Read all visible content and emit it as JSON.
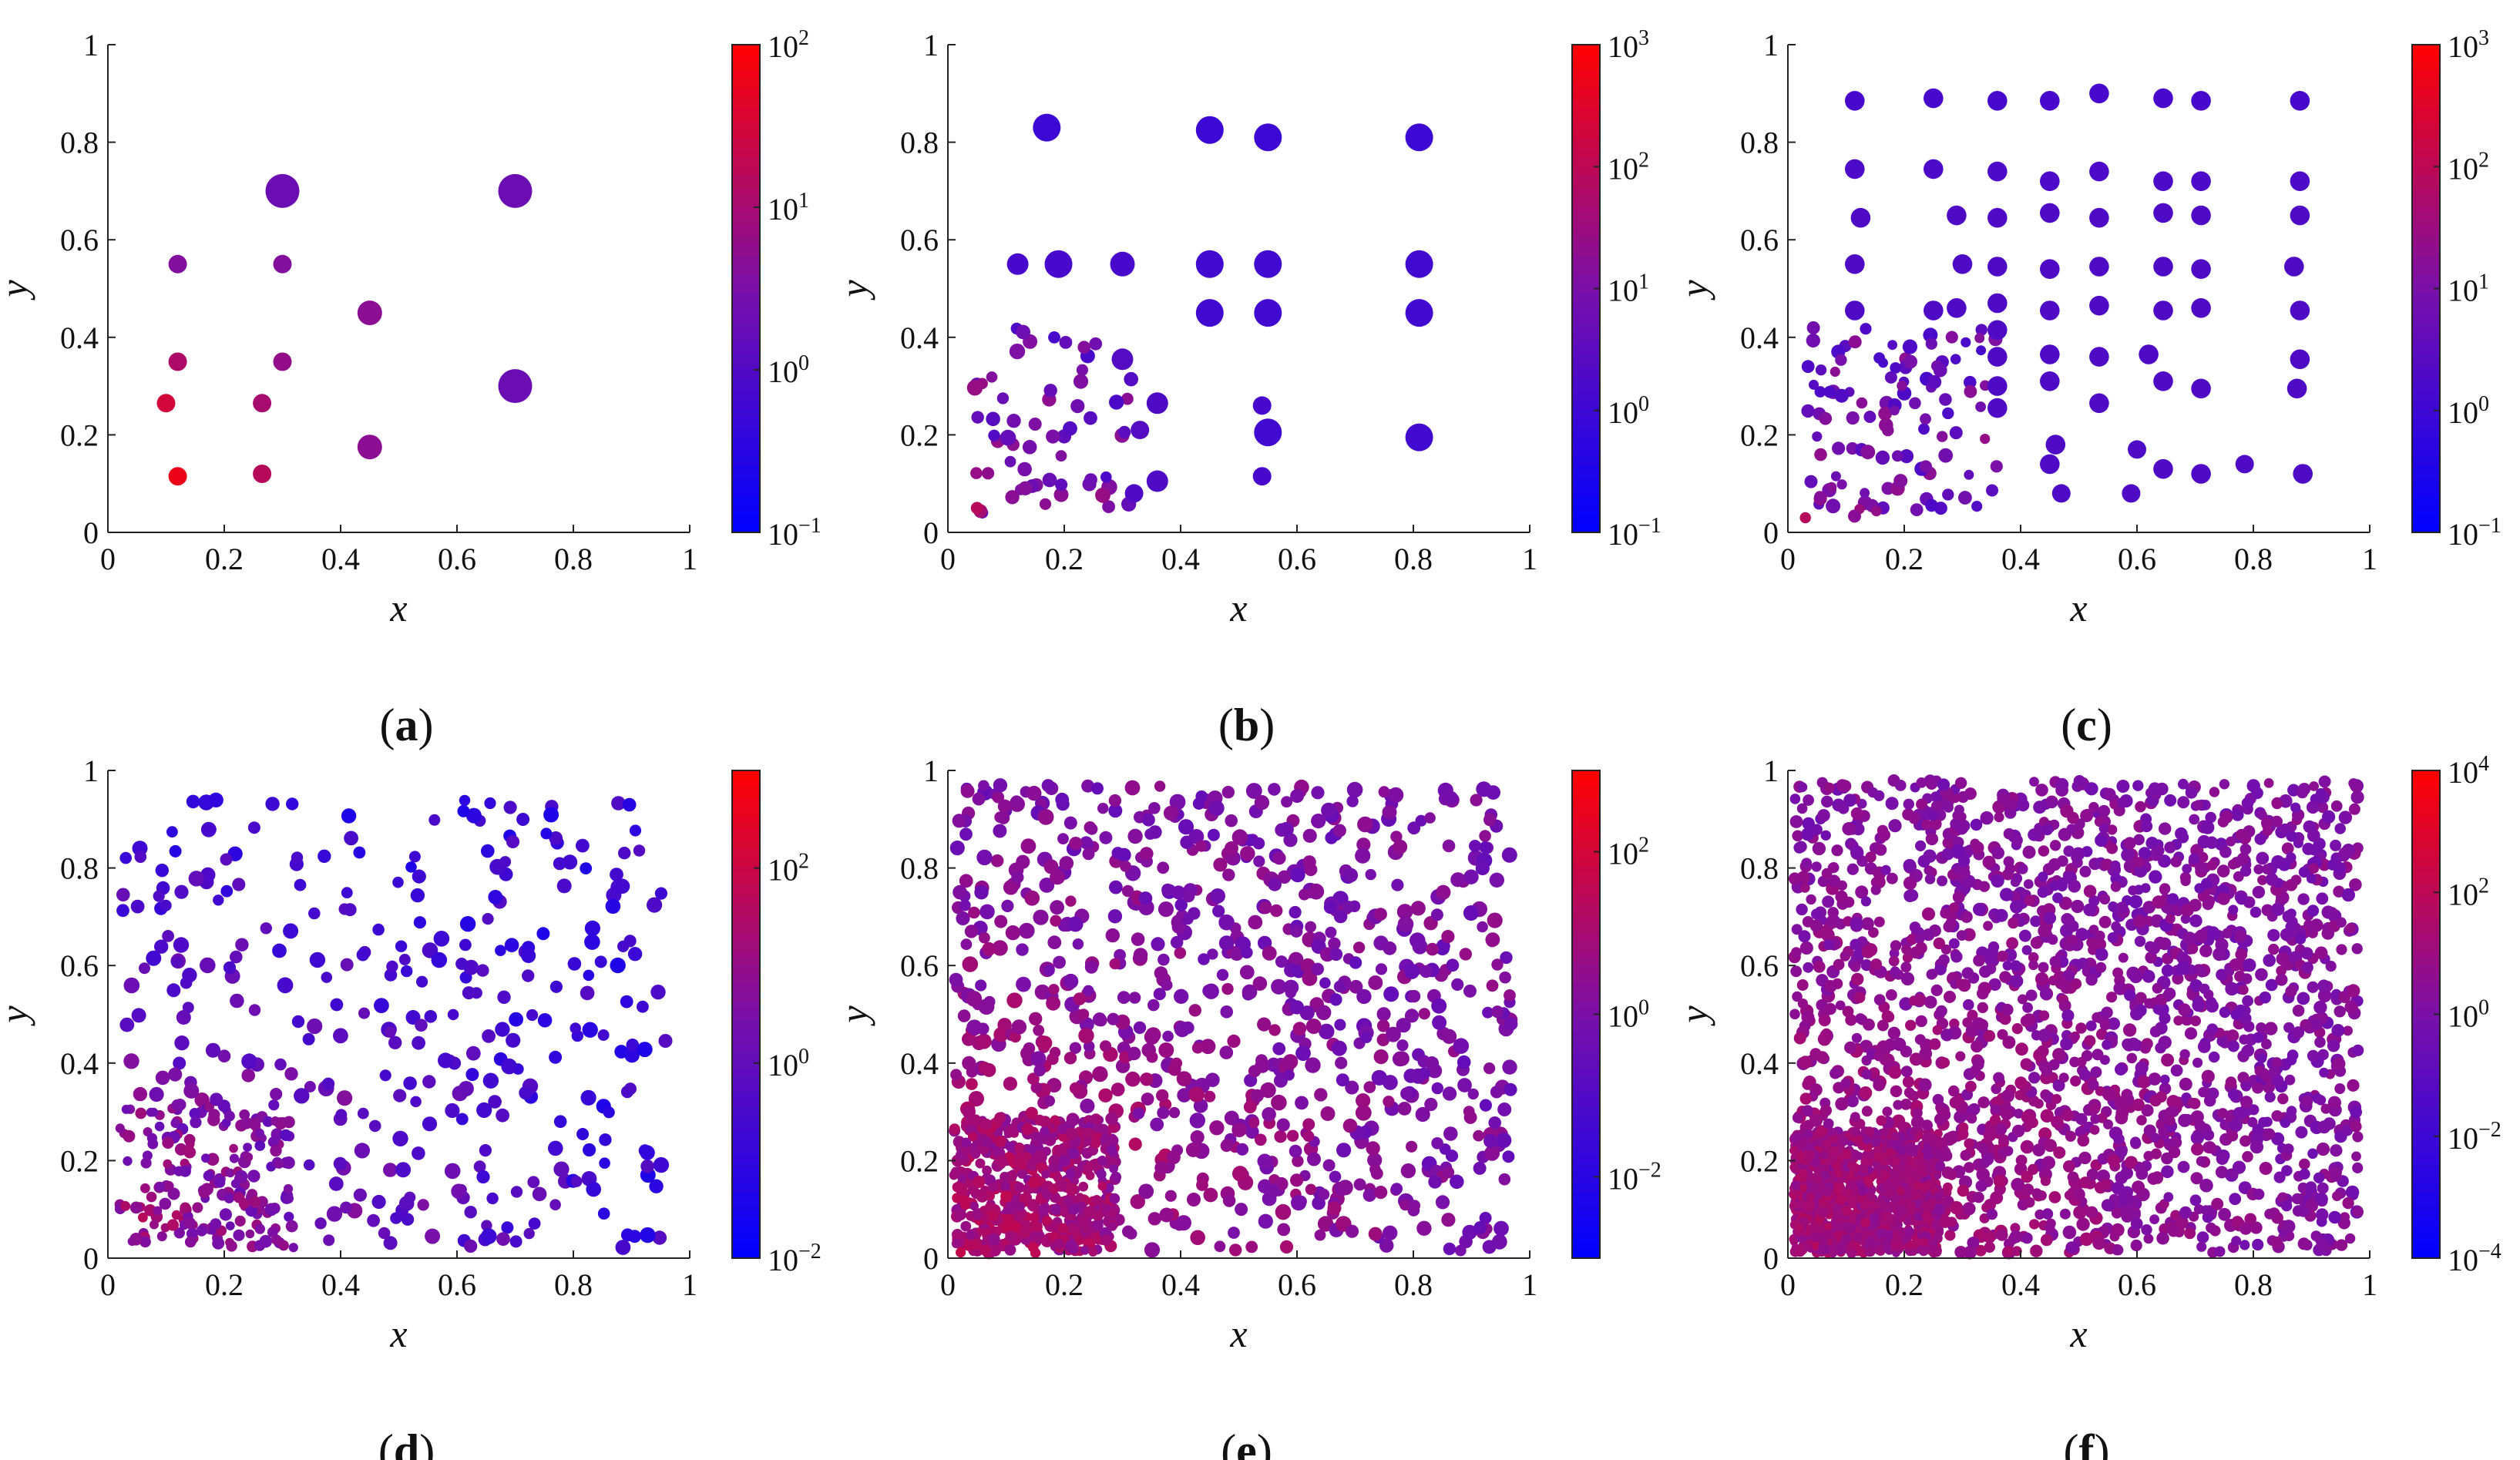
{
  "figure": {
    "panel_labels": [
      "a",
      "b",
      "c",
      "d",
      "e",
      "f"
    ],
    "colors": {
      "low": "#0000ff",
      "mid": "#7a10a8",
      "high": "#ff0000"
    }
  },
  "chart_data": [
    {
      "id": "a",
      "type": "scatter",
      "xlabel": "x",
      "ylabel": "y",
      "xlim": [
        0,
        1
      ],
      "ylim": [
        0,
        1
      ],
      "x_ticks": [
        "0",
        "0.2",
        "0.4",
        "0.6",
        "0.8",
        "1"
      ],
      "y_ticks": [
        "0",
        "0.2",
        "0.4",
        "0.6",
        "0.8",
        "1"
      ],
      "colorbar": {
        "log_min": -1,
        "log_max": 2,
        "tick_exponents": [
          -1,
          0,
          1,
          2
        ]
      },
      "points": [
        [
          0.3,
          0.7,
          0.55,
          2
        ],
        [
          0.7,
          0.7,
          0.55,
          2
        ],
        [
          0.7,
          0.3,
          0.55,
          2
        ],
        [
          0.12,
          0.55,
          0.3,
          4
        ],
        [
          0.3,
          0.55,
          0.3,
          4
        ],
        [
          0.12,
          0.35,
          0.3,
          12
        ],
        [
          0.3,
          0.35,
          0.3,
          6
        ],
        [
          0.45,
          0.45,
          0.4,
          5
        ],
        [
          0.45,
          0.175,
          0.4,
          5
        ],
        [
          0.1,
          0.265,
          0.3,
          30
        ],
        [
          0.265,
          0.265,
          0.3,
          10
        ],
        [
          0.265,
          0.12,
          0.3,
          15
        ],
        [
          0.12,
          0.115,
          0.3,
          60
        ]
      ],
      "fill": null
    },
    {
      "id": "b",
      "type": "scatter",
      "xlabel": "x",
      "ylabel": "y",
      "xlim": [
        0,
        1
      ],
      "ylim": [
        0,
        1
      ],
      "x_ticks": [
        "0",
        "0.2",
        "0.4",
        "0.6",
        "0.8",
        "1"
      ],
      "y_ticks": [
        "0",
        "0.2",
        "0.4",
        "0.6",
        "0.8",
        "1"
      ],
      "colorbar": {
        "log_min": -1,
        "log_max": 3,
        "tick_exponents": [
          -1,
          0,
          1,
          2,
          3
        ]
      },
      "points": [
        [
          0.17,
          0.83,
          0.45,
          1
        ],
        [
          0.45,
          0.825,
          0.45,
          1
        ],
        [
          0.55,
          0.81,
          0.45,
          1
        ],
        [
          0.81,
          0.81,
          0.45,
          1
        ],
        [
          0.12,
          0.55,
          0.35,
          1.5
        ],
        [
          0.19,
          0.55,
          0.45,
          1.5
        ],
        [
          0.3,
          0.55,
          0.4,
          1.5
        ],
        [
          0.45,
          0.55,
          0.45,
          1.2
        ],
        [
          0.55,
          0.55,
          0.45,
          1.2
        ],
        [
          0.81,
          0.55,
          0.45,
          1.2
        ],
        [
          0.45,
          0.45,
          0.45,
          1.2
        ],
        [
          0.55,
          0.45,
          0.45,
          1.2
        ],
        [
          0.81,
          0.45,
          0.45,
          1.2
        ],
        [
          0.55,
          0.205,
          0.45,
          1.2
        ],
        [
          0.81,
          0.195,
          0.45,
          1.2
        ],
        [
          0.54,
          0.26,
          0.3,
          1.5
        ],
        [
          0.54,
          0.115,
          0.3,
          1.5
        ],
        [
          0.36,
          0.265,
          0.35,
          2
        ],
        [
          0.36,
          0.105,
          0.35,
          2
        ],
        [
          0.3,
          0.355,
          0.35,
          2.5
        ],
        [
          0.32,
          0.08,
          0.3,
          2
        ],
        [
          0.33,
          0.21,
          0.3,
          2.5
        ],
        [
          0.05,
          0.05,
          0.2,
          80
        ]
      ],
      "fill": {
        "x0": 0.04,
        "x1": 0.32,
        "y0": 0.04,
        "y1": 0.42,
        "n": 60,
        "rmin": 0.18,
        "rmax": 0.26,
        "logv0": 1.1,
        "logv1": 0.3,
        "seed": 11
      }
    },
    {
      "id": "c",
      "type": "scatter",
      "xlabel": "x",
      "ylabel": "y",
      "xlim": [
        0,
        1
      ],
      "ylim": [
        0,
        1
      ],
      "x_ticks": [
        "0",
        "0.2",
        "0.4",
        "0.6",
        "0.8",
        "1"
      ],
      "y_ticks": [
        "0",
        "0.2",
        "0.4",
        "0.6",
        "0.8",
        "1"
      ],
      "colorbar": {
        "log_min": -1,
        "log_max": 3,
        "tick_exponents": [
          -1,
          0,
          1,
          2,
          3
        ]
      },
      "points": [
        [
          0.115,
          0.885,
          0.32,
          1.5
        ],
        [
          0.25,
          0.89,
          0.32,
          1.5
        ],
        [
          0.36,
          0.885,
          0.32,
          1.5
        ],
        [
          0.45,
          0.885,
          0.32,
          1.5
        ],
        [
          0.535,
          0.9,
          0.32,
          1.5
        ],
        [
          0.645,
          0.89,
          0.32,
          1.5
        ],
        [
          0.71,
          0.885,
          0.32,
          1.5
        ],
        [
          0.88,
          0.885,
          0.32,
          1.5
        ],
        [
          0.115,
          0.745,
          0.32,
          1.8
        ],
        [
          0.25,
          0.745,
          0.32,
          1.8
        ],
        [
          0.36,
          0.74,
          0.32,
          1.8
        ],
        [
          0.45,
          0.72,
          0.32,
          1.8
        ],
        [
          0.535,
          0.74,
          0.32,
          1.8
        ],
        [
          0.645,
          0.72,
          0.32,
          1.8
        ],
        [
          0.71,
          0.72,
          0.32,
          1.8
        ],
        [
          0.88,
          0.72,
          0.32,
          1.8
        ],
        [
          0.125,
          0.645,
          0.32,
          2
        ],
        [
          0.29,
          0.65,
          0.32,
          2
        ],
        [
          0.36,
          0.645,
          0.32,
          2
        ],
        [
          0.45,
          0.655,
          0.32,
          2
        ],
        [
          0.535,
          0.645,
          0.32,
          2
        ],
        [
          0.645,
          0.655,
          0.32,
          2
        ],
        [
          0.71,
          0.65,
          0.32,
          2
        ],
        [
          0.88,
          0.65,
          0.32,
          2
        ],
        [
          0.115,
          0.55,
          0.32,
          2
        ],
        [
          0.3,
          0.55,
          0.32,
          2
        ],
        [
          0.36,
          0.545,
          0.32,
          2
        ],
        [
          0.45,
          0.54,
          0.32,
          2
        ],
        [
          0.535,
          0.545,
          0.32,
          2
        ],
        [
          0.645,
          0.545,
          0.32,
          2
        ],
        [
          0.71,
          0.54,
          0.32,
          2
        ],
        [
          0.87,
          0.545,
          0.32,
          2
        ],
        [
          0.115,
          0.455,
          0.32,
          2
        ],
        [
          0.25,
          0.455,
          0.32,
          2
        ],
        [
          0.29,
          0.46,
          0.32,
          2
        ],
        [
          0.36,
          0.47,
          0.32,
          2
        ],
        [
          0.45,
          0.455,
          0.32,
          2
        ],
        [
          0.535,
          0.465,
          0.32,
          2
        ],
        [
          0.645,
          0.455,
          0.32,
          2
        ],
        [
          0.71,
          0.46,
          0.32,
          2
        ],
        [
          0.88,
          0.455,
          0.32,
          2
        ],
        [
          0.36,
          0.415,
          0.32,
          2
        ],
        [
          0.36,
          0.36,
          0.32,
          2
        ],
        [
          0.45,
          0.365,
          0.32,
          2
        ],
        [
          0.535,
          0.36,
          0.32,
          2
        ],
        [
          0.62,
          0.365,
          0.32,
          2
        ],
        [
          0.88,
          0.355,
          0.32,
          2
        ],
        [
          0.36,
          0.3,
          0.32,
          2
        ],
        [
          0.45,
          0.31,
          0.32,
          2
        ],
        [
          0.645,
          0.31,
          0.32,
          2
        ],
        [
          0.71,
          0.295,
          0.32,
          2
        ],
        [
          0.875,
          0.295,
          0.32,
          2
        ],
        [
          0.535,
          0.265,
          0.32,
          2
        ],
        [
          0.36,
          0.255,
          0.32,
          2
        ],
        [
          0.46,
          0.18,
          0.32,
          2
        ],
        [
          0.45,
          0.14,
          0.32,
          2
        ],
        [
          0.645,
          0.13,
          0.32,
          2
        ],
        [
          0.71,
          0.12,
          0.32,
          2
        ],
        [
          0.885,
          0.12,
          0.32,
          2
        ],
        [
          0.59,
          0.08,
          0.3,
          2
        ],
        [
          0.47,
          0.08,
          0.3,
          2
        ],
        [
          0.6,
          0.17,
          0.3,
          2
        ],
        [
          0.785,
          0.14,
          0.3,
          2
        ],
        [
          0.03,
          0.03,
          0.18,
          80
        ]
      ],
      "fill": {
        "x0": 0.03,
        "x1": 0.36,
        "y0": 0.03,
        "y1": 0.42,
        "n": 110,
        "rmin": 0.16,
        "rmax": 0.24,
        "logv0": 1.0,
        "logv1": 0.5,
        "seed": 23
      }
    },
    {
      "id": "d",
      "type": "scatter",
      "xlabel": "x",
      "ylabel": "y",
      "xlim": [
        0,
        1
      ],
      "ylim": [
        0,
        1
      ],
      "x_ticks": [
        "0",
        "0.2",
        "0.4",
        "0.6",
        "0.8",
        "1"
      ],
      "y_ticks": [
        "0",
        "0.2",
        "0.4",
        "0.6",
        "0.8",
        "1"
      ],
      "colorbar": {
        "log_min": -2,
        "log_max": 3,
        "tick_exponents": [
          -2,
          0,
          2
        ]
      },
      "points": [],
      "fill": {
        "x0": 0.02,
        "x1": 0.96,
        "y0": 0.02,
        "y1": 0.94,
        "n": 520,
        "rmin": 0.18,
        "rmax": 0.26,
        "logv0": 1.3,
        "logv1": -0.8,
        "seed": 37,
        "dense_corner": 0.3
      }
    },
    {
      "id": "e",
      "type": "scatter",
      "xlabel": "x",
      "ylabel": "y",
      "xlim": [
        0,
        1
      ],
      "ylim": [
        0,
        1
      ],
      "x_ticks": [
        "0",
        "0.2",
        "0.4",
        "0.6",
        "0.8",
        "1"
      ],
      "y_ticks": [
        "0",
        "0.2",
        "0.4",
        "0.6",
        "0.8",
        "1"
      ],
      "colorbar": {
        "log_min": -3,
        "log_max": 3,
        "tick_exponents": [
          -2,
          0,
          2
        ]
      },
      "points": [],
      "fill": {
        "x0": 0.01,
        "x1": 0.97,
        "y0": 0.01,
        "y1": 0.97,
        "n": 1400,
        "rmin": 0.18,
        "rmax": 0.26,
        "logv0": 1.2,
        "logv1": 0.0,
        "seed": 53,
        "dense_corner": 0.28
      }
    },
    {
      "id": "f",
      "type": "scatter",
      "xlabel": "x",
      "ylabel": "y",
      "xlim": [
        0,
        1
      ],
      "ylim": [
        0,
        1
      ],
      "x_ticks": [
        "0",
        "0.2",
        "0.4",
        "0.6",
        "0.8",
        "1"
      ],
      "y_ticks": [
        "0",
        "0.2",
        "0.4",
        "0.6",
        "0.8",
        "1"
      ],
      "colorbar": {
        "log_min": -4,
        "log_max": 4,
        "tick_exponents": [
          -4,
          -2,
          0,
          2,
          4
        ]
      },
      "points": [],
      "fill": {
        "x0": 0.01,
        "x1": 0.98,
        "y0": 0.01,
        "y1": 0.98,
        "n": 3200,
        "rmin": 0.16,
        "rmax": 0.22,
        "logv0": 1.3,
        "logv1": 0.2,
        "seed": 71,
        "dense_corner": 0.25
      }
    }
  ]
}
